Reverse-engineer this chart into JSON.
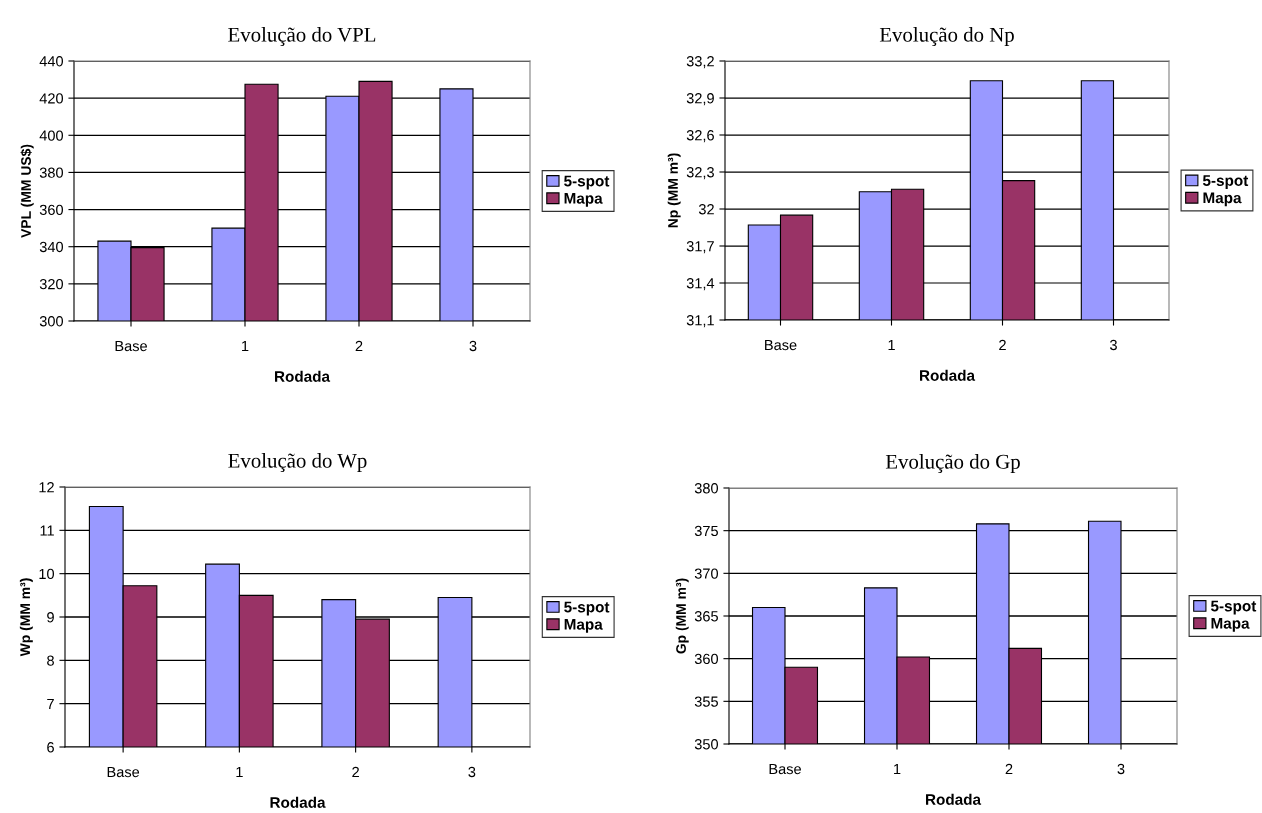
{
  "chart_data": [
    {
      "type": "bar",
      "title": "Evolução do VPL",
      "xlabel": "Rodada",
      "ylabel": "VPL (MM US$)",
      "categories": [
        "Base",
        "1",
        "2",
        "3"
      ],
      "series": [
        {
          "name": "5-spot",
          "color": "#9999ff",
          "values": [
            343,
            350,
            421,
            425
          ]
        },
        {
          "name": "Mapa",
          "color": "#993366",
          "values": [
            339.5,
            427.5,
            429,
            null
          ]
        }
      ],
      "ylim": [
        300,
        440
      ],
      "yticks": [
        300,
        320,
        340,
        360,
        380,
        400,
        420,
        440
      ],
      "grid": "y",
      "legend": "right"
    },
    {
      "type": "bar",
      "title": "Evolução do Np",
      "xlabel": "Rodada",
      "ylabel": "Np (MM m³)",
      "categories": [
        "Base",
        "1",
        "2",
        "3"
      ],
      "series": [
        {
          "name": "5-spot",
          "color": "#9999ff",
          "values": [
            31.87,
            32.14,
            33.04,
            33.04
          ]
        },
        {
          "name": "Mapa",
          "color": "#993366",
          "values": [
            31.95,
            32.16,
            32.23,
            null
          ]
        }
      ],
      "ylim": [
        31.1,
        33.2
      ],
      "yticks": [
        {
          "value": 31.1,
          "label": "31,1"
        },
        {
          "value": 31.4,
          "label": "31,4"
        },
        {
          "value": 31.7,
          "label": "31,7"
        },
        32,
        {
          "value": 32.3,
          "label": "32,3"
        },
        {
          "value": 32.6,
          "label": "32,6"
        },
        {
          "value": 32.9,
          "label": "32,9"
        },
        {
          "value": 33.2,
          "label": "33,2"
        }
      ],
      "grid": "y",
      "legend": "right"
    },
    {
      "type": "bar",
      "title": "Evolução do Wp",
      "xlabel": "Rodada",
      "ylabel": "Wp (MM m³)",
      "categories": [
        "Base",
        "1",
        "2",
        "3"
      ],
      "series": [
        {
          "name": "5-spot",
          "color": "#9999ff",
          "values": [
            11.55,
            10.22,
            9.4,
            9.45
          ]
        },
        {
          "name": "Mapa",
          "color": "#993366",
          "values": [
            9.72,
            9.5,
            8.95,
            null
          ]
        }
      ],
      "ylim": [
        6,
        12
      ],
      "yticks": [
        6,
        7,
        8,
        9,
        10,
        11,
        12
      ],
      "grid": "y",
      "legend": "right"
    },
    {
      "type": "bar",
      "title": "Evolução do Gp",
      "xlabel": "Rodada",
      "ylabel": "Gp (MM m³)",
      "categories": [
        "Base",
        "1",
        "2",
        "3"
      ],
      "series": [
        {
          "name": "5-spot",
          "color": "#9999ff",
          "values": [
            366,
            368.3,
            375.8,
            376.1
          ]
        },
        {
          "name": "Mapa",
          "color": "#993366",
          "values": [
            359,
            360.2,
            361.2,
            null
          ]
        }
      ],
      "ylim": [
        350,
        380
      ],
      "yticks": [
        350,
        355,
        360,
        365,
        370,
        375,
        380
      ],
      "grid": "y",
      "legend": "right"
    }
  ]
}
